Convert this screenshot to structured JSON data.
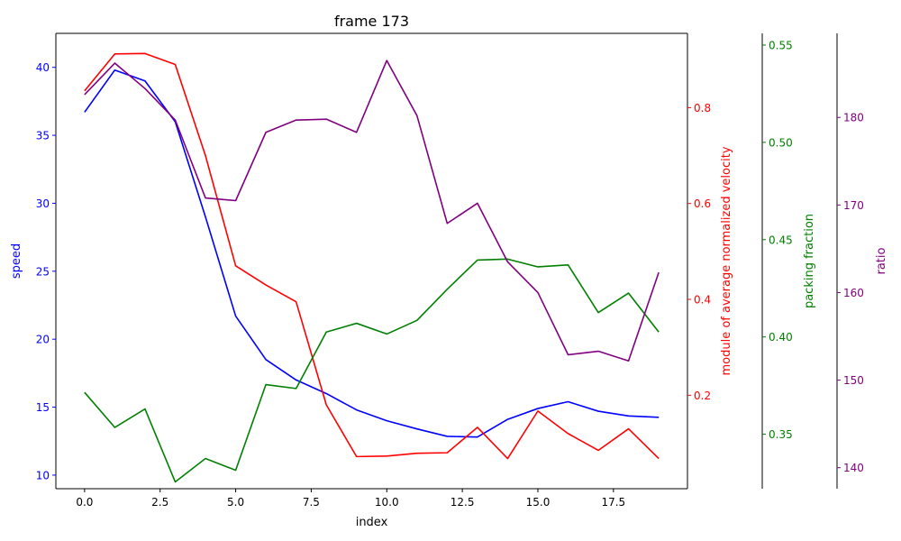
{
  "chart_data": {
    "type": "line",
    "title": "frame 173",
    "xlabel": "index",
    "x": [
      0,
      1,
      2,
      3,
      4,
      5,
      6,
      7,
      8,
      9,
      10,
      11,
      12,
      13,
      14,
      15,
      16,
      17,
      18,
      19
    ],
    "xlim": [
      -0.95,
      19.95
    ],
    "xticks": [
      0.0,
      2.5,
      5.0,
      7.5,
      10.0,
      12.5,
      15.0,
      17.5
    ],
    "xtick_labels": [
      "0.0",
      "2.5",
      "5.0",
      "7.5",
      "10.0",
      "12.5",
      "15.0",
      "17.5"
    ],
    "grid": false,
    "axes": [
      {
        "id": "speed",
        "label": "speed",
        "color": "#0000ff",
        "side": "left",
        "ylim": [
          9.0,
          42.5
        ],
        "ticks": [
          10,
          15,
          20,
          25,
          30,
          35,
          40
        ],
        "tick_labels": [
          "10",
          "15",
          "20",
          "25",
          "30",
          "35",
          "40"
        ]
      },
      {
        "id": "velocity",
        "label": "module of average normalized velocity",
        "color": "#ff0000",
        "side": "right",
        "ylim": [
          0.005,
          0.955
        ],
        "ticks": [
          0.2,
          0.4,
          0.6,
          0.8
        ],
        "tick_labels": [
          "0.2",
          "0.4",
          "0.6",
          "0.8"
        ]
      },
      {
        "id": "packing",
        "label": "packing fraction",
        "color": "#008000",
        "side": "right",
        "ylim": [
          0.322,
          0.556
        ],
        "ticks": [
          0.35,
          0.4,
          0.45,
          0.5,
          0.55
        ],
        "tick_labels": [
          "0.35",
          "0.40",
          "0.45",
          "0.50",
          "0.55"
        ]
      },
      {
        "id": "ratio",
        "label": "ratio",
        "color": "#800080",
        "side": "right",
        "ylim": [
          137.6,
          189.6
        ],
        "ticks": [
          140,
          150,
          160,
          170,
          180
        ],
        "tick_labels": [
          "140",
          "150",
          "160",
          "170",
          "180"
        ]
      }
    ],
    "series": [
      {
        "axis": "speed",
        "color": "#0000ff",
        "values": [
          36.7,
          39.8,
          39.0,
          36.0,
          29.0,
          21.7,
          18.5,
          17.0,
          16.0,
          14.8,
          14.0,
          13.4,
          12.85,
          12.8,
          14.1,
          14.9,
          15.4,
          14.7,
          14.35,
          14.25
        ]
      },
      {
        "axis": "velocity",
        "color": "#ff0000",
        "values": [
          0.835,
          0.912,
          0.913,
          0.89,
          0.7,
          0.47,
          0.43,
          0.395,
          0.18,
          0.072,
          0.073,
          0.079,
          0.08,
          0.133,
          0.068,
          0.167,
          0.12,
          0.085,
          0.13,
          0.068
        ]
      },
      {
        "axis": "packing",
        "color": "#008000",
        "values": [
          0.3715,
          0.3535,
          0.363,
          0.3255,
          0.3375,
          0.3315,
          0.3755,
          0.3735,
          0.4025,
          0.407,
          0.4015,
          0.4085,
          0.4245,
          0.4395,
          0.44,
          0.436,
          0.437,
          0.4125,
          0.4225,
          0.4025
        ]
      },
      {
        "axis": "ratio",
        "color": "#800080",
        "values": [
          182.6,
          186.2,
          183.3,
          179.7,
          170.8,
          170.5,
          178.3,
          179.7,
          179.8,
          178.3,
          186.5,
          180.2,
          167.9,
          170.2,
          163.5,
          160.0,
          152.9,
          153.3,
          152.2,
          162.3
        ]
      }
    ]
  }
}
